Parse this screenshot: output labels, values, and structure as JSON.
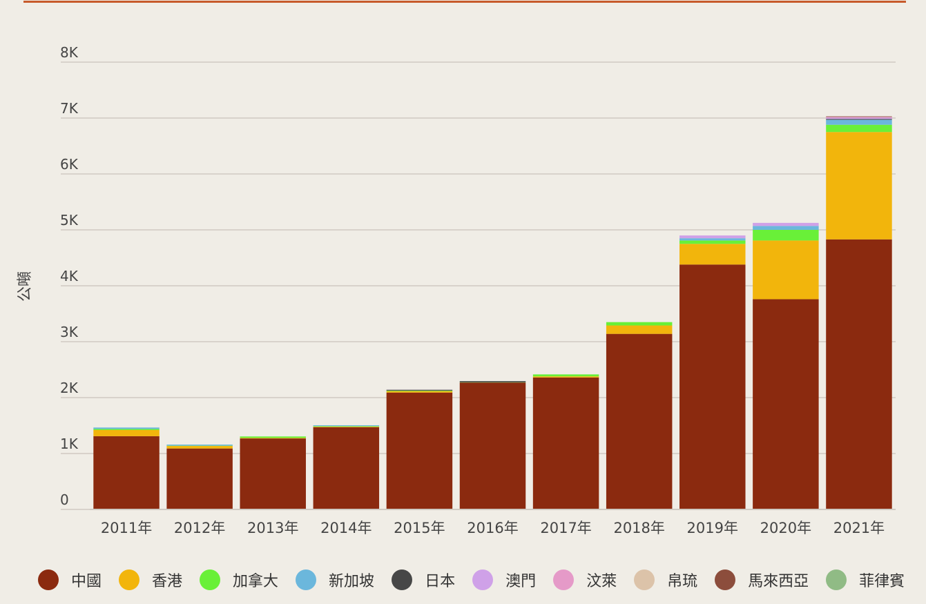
{
  "chart_data": {
    "type": "bar",
    "stacked": true,
    "ylabel": "公噸",
    "ylim": [
      0,
      8000
    ],
    "yticks": [
      0,
      1000,
      2000,
      3000,
      4000,
      5000,
      6000,
      7000,
      8000
    ],
    "ytick_labels": [
      "0",
      "1K",
      "2K",
      "3K",
      "4K",
      "5K",
      "6K",
      "7K",
      "8K"
    ],
    "grid": true,
    "legend_position": "bottom",
    "categories": [
      "2011年",
      "2012年",
      "2013年",
      "2014年",
      "2015年",
      "2016年",
      "2017年",
      "2018年",
      "2019年",
      "2020年",
      "2021年"
    ],
    "series": [
      {
        "name": "中國",
        "color": "#8b2a0f",
        "values": [
          1310,
          1090,
          1270,
          1470,
          2090,
          2270,
          2360,
          3140,
          4380,
          3760,
          4830
        ]
      },
      {
        "name": "香港",
        "color": "#f2b50c",
        "values": [
          110,
          45,
          10,
          10,
          25,
          0,
          20,
          150,
          370,
          1050,
          1920
        ]
      },
      {
        "name": "加拿大",
        "color": "#69f038",
        "values": [
          20,
          5,
          25,
          10,
          10,
          5,
          35,
          60,
          60,
          190,
          130
        ]
      },
      {
        "name": "新加坡",
        "color": "#6bb7dc",
        "values": [
          25,
          20,
          0,
          15,
          0,
          0,
          0,
          0,
          40,
          70,
          90
        ]
      },
      {
        "name": "日本",
        "color": "#474747",
        "values": [
          0,
          0,
          0,
          0,
          15,
          20,
          0,
          0,
          0,
          0,
          15
        ]
      },
      {
        "name": "澳門",
        "color": "#cfa1e8",
        "values": [
          0,
          0,
          0,
          0,
          0,
          0,
          0,
          0,
          50,
          55,
          20
        ]
      },
      {
        "name": "汶萊",
        "color": "#e59ac8",
        "values": [
          0,
          0,
          0,
          0,
          0,
          0,
          0,
          0,
          0,
          0,
          15
        ]
      },
      {
        "name": "帛琉",
        "color": "#dcc3a9",
        "values": [
          0,
          0,
          0,
          0,
          0,
          0,
          0,
          0,
          0,
          0,
          0
        ]
      },
      {
        "name": "馬來西亞",
        "color": "#8c4d3c",
        "values": [
          0,
          0,
          0,
          0,
          0,
          0,
          0,
          0,
          0,
          0,
          10
        ]
      },
      {
        "name": "菲律賓",
        "color": "#90bb85",
        "values": [
          0,
          0,
          0,
          0,
          0,
          0,
          0,
          0,
          0,
          0,
          0
        ]
      }
    ]
  }
}
